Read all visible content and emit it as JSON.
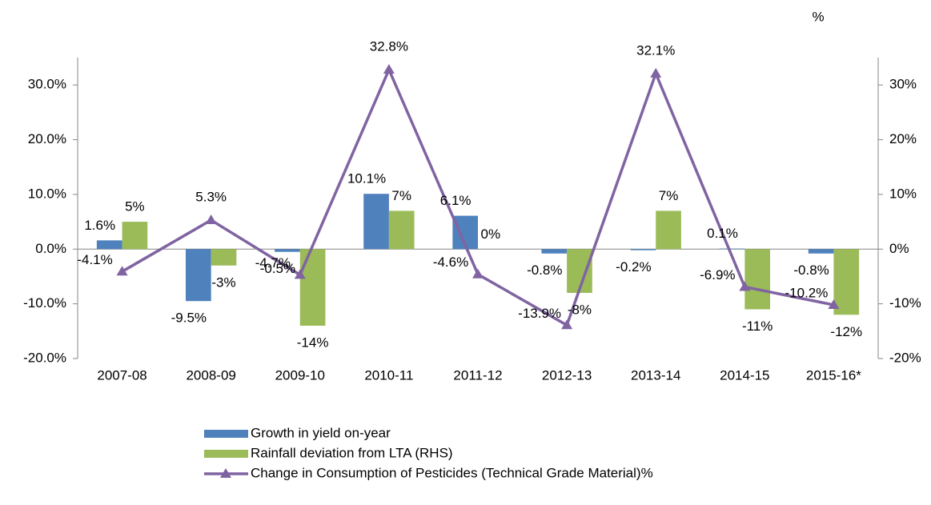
{
  "chart_data": {
    "type": "bar_line",
    "categories": [
      "2007-08",
      "2008-09",
      "2009-10",
      "2010-11",
      "2011-12",
      "2012-13",
      "2013-14",
      "2014-15",
      "2015-16*"
    ],
    "y2_label": "%",
    "ylim": [
      -20,
      35
    ],
    "yticks": [
      {
        "value": -20,
        "label": "-20.0%"
      },
      {
        "value": -10,
        "label": "-10.0%"
      },
      {
        "value": 0,
        "label": "0.0%"
      },
      {
        "value": 10,
        "label": "10.0%"
      },
      {
        "value": 20,
        "label": "20.0%"
      },
      {
        "value": 30,
        "label": "30.0%"
      }
    ],
    "y2lim": [
      -20,
      35
    ],
    "y2ticks": [
      {
        "value": -20,
        "label": "-20%"
      },
      {
        "value": -10,
        "label": "-10%"
      },
      {
        "value": 0,
        "label": "0%"
      },
      {
        "value": 10,
        "label": "10%"
      },
      {
        "value": 20,
        "label": "20%"
      },
      {
        "value": 30,
        "label": "30%"
      }
    ],
    "legend": "bottom",
    "series": [
      {
        "name": "Growth in yield on-year",
        "type": "bar",
        "color": "#4f81bd",
        "values": [
          1.6,
          -9.5,
          -0.5,
          10.1,
          6.1,
          -0.8,
          -0.2,
          0.1,
          -0.8
        ],
        "value_labels": [
          "1.6%",
          "-9.5%",
          "-0.5%",
          "10.1%",
          "6.1%",
          "-0.8%",
          "-0.2%",
          "0.1%",
          "-0.8%"
        ]
      },
      {
        "name": "Rainfall deviation from LTA (RHS)",
        "type": "bar",
        "axis": "y2",
        "color": "#9bbb59",
        "values": [
          5,
          -3,
          -14,
          7,
          0,
          -8,
          7,
          -11,
          -12
        ],
        "value_labels": [
          "5%",
          "-3%",
          "-14%",
          "7%",
          "0%",
          "-8%",
          "7%",
          "-11%",
          "-12%"
        ]
      },
      {
        "name": "Change in Consumption of Pesticides (Technical Grade Material)%",
        "type": "line",
        "color": "#8064a2",
        "values": [
          -4.1,
          5.3,
          -4.7,
          32.8,
          -4.6,
          -13.9,
          32.1,
          -6.9,
          -10.2
        ],
        "value_labels": [
          "-4.1%",
          "5.3%",
          "-4.7%",
          "32.8%",
          "-4.6%",
          "-13.9%",
          "32.1%",
          "-6.9%",
          "-10.2%"
        ]
      }
    ]
  }
}
